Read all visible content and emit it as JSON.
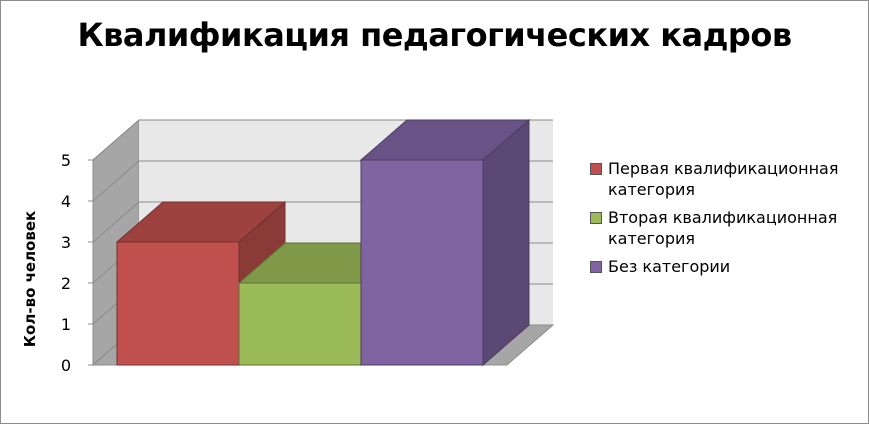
{
  "chart_data": {
    "type": "bar",
    "title": "Квалификация педагогических кадров",
    "ylabel": "Кол-во человек",
    "xlabel": "",
    "ylim": [
      0,
      5
    ],
    "yticks": [
      0,
      1,
      2,
      3,
      4,
      5
    ],
    "grid": true,
    "legend_position": "right",
    "three_d": true,
    "series": [
      {
        "name": "Первая квалификационная категория",
        "values": [
          3
        ],
        "color": "#c0504d"
      },
      {
        "name": "Вторая квалификационная категория",
        "values": [
          2
        ],
        "color": "#9bbb59"
      },
      {
        "name": "Без категории",
        "values": [
          5
        ],
        "color": "#8064a2"
      }
    ]
  }
}
